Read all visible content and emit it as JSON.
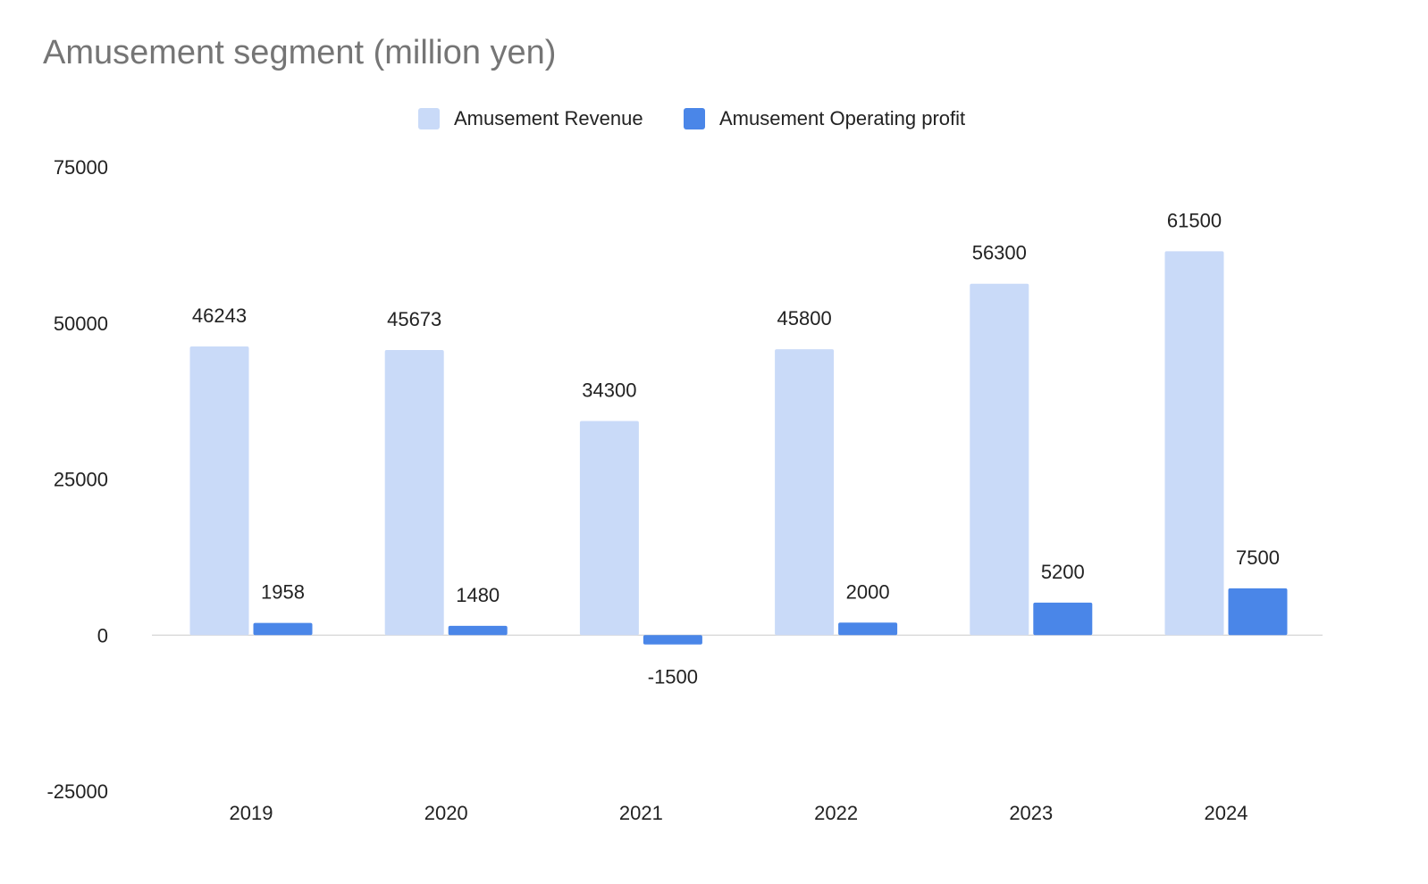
{
  "chart_data": {
    "type": "bar",
    "title": "Amusement segment (million yen)",
    "xlabel": "",
    "ylabel": "",
    "categories": [
      "2019",
      "2020",
      "2021",
      "2022",
      "2023",
      "2024"
    ],
    "series": [
      {
        "name": "Amusement Revenue",
        "values": [
          46243,
          45673,
          34300,
          45800,
          56300,
          61500
        ],
        "color": "#c9daf8"
      },
      {
        "name": "Amusement Operating profit",
        "values": [
          1958,
          1480,
          -1500,
          2000,
          5200,
          7500
        ],
        "color": "#4a86e8"
      }
    ],
    "ylim": [
      -25000,
      75000
    ],
    "yticks": [
      "75000",
      "50000",
      "25000",
      "0",
      "-25000"
    ],
    "data_labels": true,
    "grid": false,
    "legend": "top-center"
  }
}
